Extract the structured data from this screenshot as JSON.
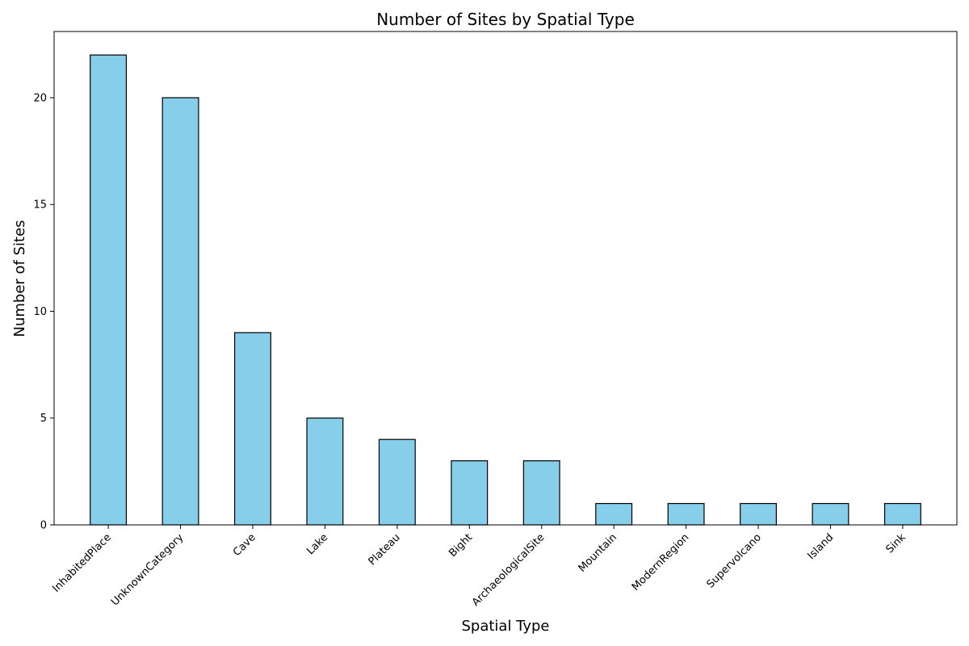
{
  "chart_data": {
    "type": "bar",
    "title": "Number of Sites by Spatial Type",
    "xlabel": "Spatial Type",
    "ylabel": "Number of Sites",
    "categories": [
      "InhabitedPlace",
      "UnknownCategory",
      "Cave",
      "Lake",
      "Plateau",
      "Bight",
      "ArchaeologicalSite",
      "Mountain",
      "ModernRegion",
      "Supervolcano",
      "Island",
      "Sink"
    ],
    "values": [
      22,
      20,
      9,
      5,
      4,
      3,
      3,
      1,
      1,
      1,
      1,
      1
    ],
    "ylim": [
      0,
      23.1
    ],
    "yticks": [
      0,
      5,
      10,
      15,
      20
    ],
    "grid": false,
    "legend": "none",
    "bar_color": "#87ceeb",
    "edge_color": "#000000"
  }
}
